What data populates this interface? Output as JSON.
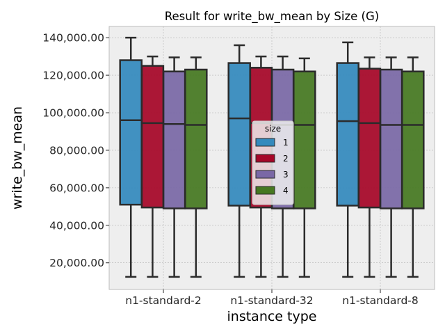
{
  "chart_data": {
    "type": "box",
    "title": "Result for write_bw_mean by Size (G)",
    "xlabel": "instance type",
    "ylabel": "write_bw_mean",
    "categories": [
      "n1-standard-2",
      "n1-standard-32",
      "n1-standard-8"
    ],
    "ylim": [
      5800,
      146000
    ],
    "yticks": [
      20000,
      40000,
      60000,
      80000,
      100000,
      120000,
      140000
    ],
    "ytick_labels": [
      "20,000.00",
      "40,000.00",
      "60,000.00",
      "80,000.00",
      "100,000.00",
      "120,000.00",
      "140,000.00"
    ],
    "grid": true,
    "legend": {
      "title": "size",
      "placement": "center"
    },
    "series": [
      {
        "name": "1",
        "color": "#348ABD",
        "boxes": [
          {
            "min": 12500,
            "q1": 51000,
            "median": 96000,
            "q3": 128000,
            "max": 140000
          },
          {
            "min": 12500,
            "q1": 50500,
            "median": 97000,
            "q3": 126500,
            "max": 136000
          },
          {
            "min": 12500,
            "q1": 50500,
            "median": 95500,
            "q3": 126500,
            "max": 137500
          }
        ]
      },
      {
        "name": "2",
        "color": "#A60628",
        "boxes": [
          {
            "min": 12500,
            "q1": 49500,
            "median": 94500,
            "q3": 125000,
            "max": 130000
          },
          {
            "min": 12500,
            "q1": 49500,
            "median": 94500,
            "q3": 124000,
            "max": 130000
          },
          {
            "min": 12500,
            "q1": 49500,
            "median": 94500,
            "q3": 123500,
            "max": 129500
          }
        ]
      },
      {
        "name": "3",
        "color": "#7A68A6",
        "boxes": [
          {
            "min": 12500,
            "q1": 49000,
            "median": 94000,
            "q3": 122000,
            "max": 129500
          },
          {
            "min": 12500,
            "q1": 49000,
            "median": 93500,
            "q3": 123000,
            "max": 130000
          },
          {
            "min": 12500,
            "q1": 49000,
            "median": 93500,
            "q3": 123000,
            "max": 129500
          }
        ]
      },
      {
        "name": "4",
        "color": "#467821",
        "boxes": [
          {
            "min": 12500,
            "q1": 49000,
            "median": 93500,
            "q3": 123000,
            "max": 129500
          },
          {
            "min": 12500,
            "q1": 49000,
            "median": 93500,
            "q3": 122000,
            "max": 129000
          },
          {
            "min": 12500,
            "q1": 49000,
            "median": 93500,
            "q3": 122000,
            "max": 129500
          }
        ]
      }
    ]
  }
}
